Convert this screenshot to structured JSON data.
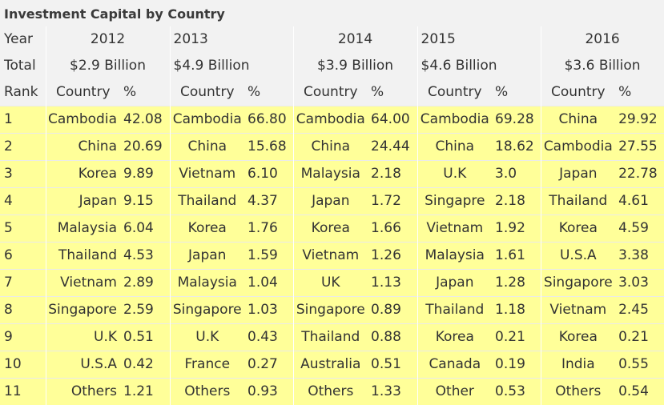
{
  "title": "Investment Capital by Country",
  "row_labels": {
    "year": "Year",
    "total": "Total",
    "rank": "Rank"
  },
  "col_labels": {
    "country": "Country",
    "pct": "%"
  },
  "years": [
    {
      "year": "2012",
      "total": "$2.9 Billion"
    },
    {
      "year": "2013",
      "total": "$4.9 Billion"
    },
    {
      "year": "2014",
      "total": "$3.9 Billion"
    },
    {
      "year": "2015",
      "total": "$4.6 Billion"
    },
    {
      "year": "2016",
      "total": "$3.6 Billion"
    }
  ],
  "rows": [
    {
      "rank": "1",
      "cells": [
        [
          "Cambodia",
          "42.08"
        ],
        [
          "Cambodia",
          "66.80"
        ],
        [
          "Cambodia",
          "64.00"
        ],
        [
          "Cambodia",
          "69.28"
        ],
        [
          "China",
          "29.92"
        ]
      ]
    },
    {
      "rank": "2",
      "cells": [
        [
          "China",
          "20.69"
        ],
        [
          "China",
          "15.68"
        ],
        [
          "China",
          "24.44"
        ],
        [
          "China",
          "18.62"
        ],
        [
          "Cambodia",
          "27.55"
        ]
      ]
    },
    {
      "rank": "3",
      "cells": [
        [
          "Korea",
          "9.89"
        ],
        [
          "Vietnam",
          "6.10"
        ],
        [
          "Malaysia",
          "2.18"
        ],
        [
          "U.K",
          "3.0"
        ],
        [
          "Japan",
          "22.78"
        ]
      ]
    },
    {
      "rank": "4",
      "cells": [
        [
          "Japan",
          "9.15"
        ],
        [
          "Thailand",
          "4.37"
        ],
        [
          "Japan",
          "1.72"
        ],
        [
          "Singapre",
          "2.18"
        ],
        [
          "Thailand",
          "4.61"
        ]
      ]
    },
    {
      "rank": "5",
      "cells": [
        [
          "Malaysia",
          "6.04"
        ],
        [
          "Korea",
          "1.76"
        ],
        [
          "Korea",
          "1.66"
        ],
        [
          "Vietnam",
          "1.92"
        ],
        [
          "Korea",
          "4.59"
        ]
      ]
    },
    {
      "rank": "6",
      "cells": [
        [
          "Thailand",
          "4.53"
        ],
        [
          "Japan",
          "1.59"
        ],
        [
          "Vietnam",
          "1.26"
        ],
        [
          "Malaysia",
          "1.61"
        ],
        [
          "U.S.A",
          "3.38"
        ]
      ]
    },
    {
      "rank": "7",
      "cells": [
        [
          "Vietnam",
          "2.89"
        ],
        [
          "Malaysia",
          "1.04"
        ],
        [
          "UK",
          "1.13"
        ],
        [
          "Japan",
          "1.28"
        ],
        [
          "Singapore",
          "3.03"
        ]
      ]
    },
    {
      "rank": "8",
      "cells": [
        [
          "Singapore",
          "2.59"
        ],
        [
          "Singapore",
          "1.03"
        ],
        [
          "Singapore",
          "0.89"
        ],
        [
          "Thailand",
          "1.18"
        ],
        [
          "Vietnam",
          "2.45"
        ]
      ]
    },
    {
      "rank": "9",
      "cells": [
        [
          "U.K",
          "0.51"
        ],
        [
          "U.K",
          "0.43"
        ],
        [
          "Thailand",
          "0.88"
        ],
        [
          "Korea",
          "0.21"
        ],
        [
          "Korea",
          "0.21"
        ]
      ]
    },
    {
      "rank": "10",
      "cells": [
        [
          "U.S.A",
          "0.42"
        ],
        [
          "France",
          "0.27"
        ],
        [
          "Australia",
          "0.51"
        ],
        [
          "Canada",
          "0.19"
        ],
        [
          "India",
          "0.55"
        ]
      ]
    },
    {
      "rank": "11",
      "cells": [
        [
          "Others",
          "1.21"
        ],
        [
          "Others",
          "0.93"
        ],
        [
          "Others",
          "1.33"
        ],
        [
          "Other",
          "0.53"
        ],
        [
          "Others",
          "0.54"
        ]
      ]
    }
  ],
  "colors": {
    "highlight": "#ffff99",
    "header_bg": "#f2f2f2",
    "text": "#333333"
  }
}
